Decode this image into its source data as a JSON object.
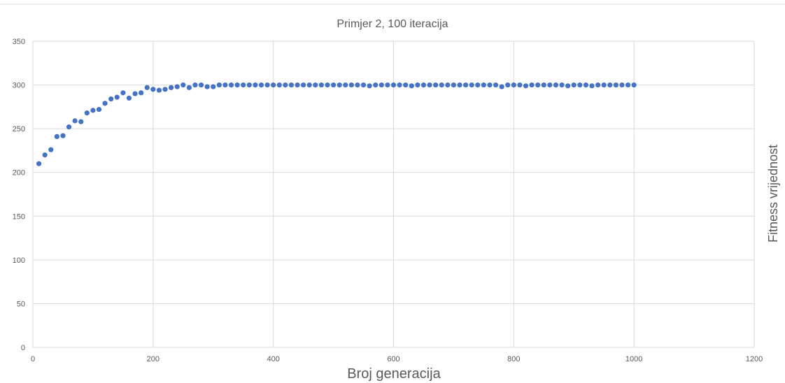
{
  "chart_data": {
    "type": "scatter",
    "title": "Primjer 2, 100 iteracija",
    "xlabel": "Broj generacija",
    "ylabel": "Fitness vrijednost",
    "xlim": [
      0,
      1200
    ],
    "ylim": [
      0,
      350
    ],
    "x_ticks": [
      0,
      200,
      400,
      600,
      800,
      1000,
      1200
    ],
    "y_ticks": [
      0,
      50,
      100,
      150,
      200,
      250,
      300,
      350
    ],
    "grid": true,
    "legend": "none",
    "marker_color": "#4472c4",
    "series": [
      {
        "x": [
          10,
          20,
          30,
          40,
          50,
          60,
          70,
          80,
          90,
          100,
          110,
          120,
          130,
          140,
          150,
          160,
          170,
          180,
          190,
          200,
          210,
          220,
          230,
          240,
          250,
          260,
          270,
          280,
          290,
          300,
          310,
          320,
          330,
          340,
          350,
          360,
          370,
          380,
          390,
          400,
          410,
          420,
          430,
          440,
          450,
          460,
          470,
          480,
          490,
          500,
          510,
          520,
          530,
          540,
          550,
          560,
          570,
          580,
          590,
          600,
          610,
          620,
          630,
          640,
          650,
          660,
          670,
          680,
          690,
          700,
          710,
          720,
          730,
          740,
          750,
          760,
          770,
          780,
          790,
          800,
          810,
          820,
          830,
          840,
          850,
          860,
          870,
          880,
          890,
          900,
          910,
          920,
          930,
          940,
          950,
          960,
          970,
          980,
          990,
          1000
        ],
        "y": [
          210,
          220,
          226,
          241,
          242,
          252,
          259,
          258,
          268,
          271,
          272,
          279,
          284,
          286,
          291,
          285,
          290,
          291,
          297,
          295,
          294,
          295,
          297,
          298,
          300,
          297,
          300,
          300,
          298,
          298,
          300,
          300,
          300,
          300,
          300,
          300,
          300,
          300,
          300,
          300,
          300,
          300,
          300,
          300,
          300,
          300,
          300,
          300,
          300,
          300,
          300,
          300,
          300,
          300,
          300,
          299,
          300,
          300,
          300,
          300,
          300,
          300,
          299,
          300,
          300,
          300,
          300,
          300,
          300,
          300,
          300,
          300,
          300,
          300,
          300,
          300,
          300,
          298,
          300,
          300,
          300,
          299,
          300,
          300,
          300,
          300,
          300,
          300,
          299,
          300,
          300,
          300,
          299,
          300,
          300,
          300,
          300,
          300,
          300,
          300
        ]
      }
    ]
  }
}
